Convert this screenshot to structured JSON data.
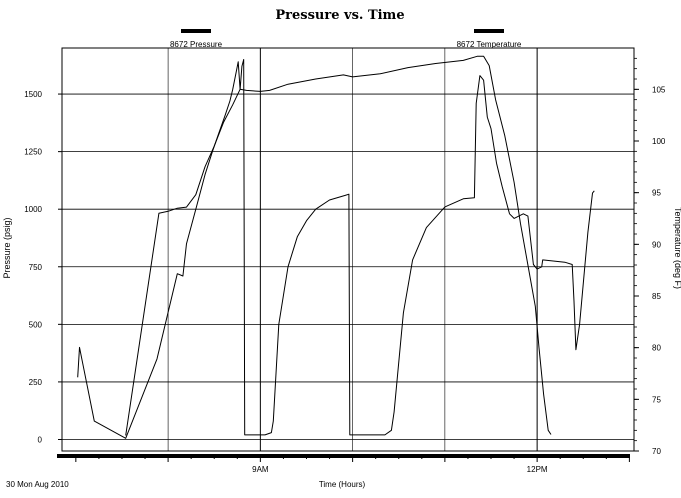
{
  "chart_data": {
    "type": "line",
    "title": "Pressure vs. Time",
    "xlabel": "Time (Hours)",
    "ylabel": "Pressure (psig)",
    "y2label": "Temperature (deg F)",
    "date_label": "30 Mon Aug 2010",
    "x_ticks": [
      {
        "x": 9.0,
        "label": "9AM"
      },
      {
        "x": 12.0,
        "label": "12PM"
      }
    ],
    "xlim": [
      6.85,
      13.05
    ],
    "ylim": [
      -50,
      1700
    ],
    "y_ticks": [
      0,
      250,
      500,
      750,
      1000,
      1250,
      1500
    ],
    "y2lim": [
      70,
      109
    ],
    "y2_ticks": [
      70,
      75,
      80,
      85,
      90,
      95,
      100,
      105
    ],
    "grid": true,
    "legend_position": "top",
    "series": [
      {
        "name": "8672 Pressure",
        "axis": "left",
        "color": "#000000",
        "points": [
          [
            7.02,
            270
          ],
          [
            7.04,
            400
          ],
          [
            7.08,
            320
          ],
          [
            7.2,
            80
          ],
          [
            7.54,
            5
          ],
          [
            7.88,
            350
          ],
          [
            8.1,
            720
          ],
          [
            8.16,
            710
          ],
          [
            8.2,
            850
          ],
          [
            8.3,
            1000
          ],
          [
            8.4,
            1150
          ],
          [
            8.48,
            1250
          ],
          [
            8.55,
            1330
          ],
          [
            8.62,
            1410
          ],
          [
            8.67,
            1470
          ],
          [
            8.7,
            1520
          ],
          [
            8.74,
            1600
          ],
          [
            8.76,
            1640
          ],
          [
            8.78,
            1520
          ],
          [
            8.8,
            1620
          ],
          [
            8.82,
            1650
          ],
          [
            8.83,
            20
          ],
          [
            9.05,
            20
          ],
          [
            9.12,
            30
          ],
          [
            9.14,
            80
          ],
          [
            9.2,
            500
          ],
          [
            9.3,
            750
          ],
          [
            9.4,
            880
          ],
          [
            9.5,
            950
          ],
          [
            9.6,
            1000
          ],
          [
            9.75,
            1040
          ],
          [
            9.92,
            1060
          ],
          [
            9.96,
            1065
          ],
          [
            9.97,
            20
          ],
          [
            10.35,
            20
          ],
          [
            10.42,
            40
          ],
          [
            10.45,
            120
          ],
          [
            10.55,
            550
          ],
          [
            10.65,
            780
          ],
          [
            10.8,
            920
          ],
          [
            11.0,
            1010
          ],
          [
            11.2,
            1045
          ],
          [
            11.32,
            1050
          ],
          [
            11.34,
            1460
          ],
          [
            11.38,
            1580
          ],
          [
            11.42,
            1560
          ],
          [
            11.46,
            1400
          ],
          [
            11.5,
            1350
          ],
          [
            11.56,
            1200
          ],
          [
            11.62,
            1100
          ],
          [
            11.7,
            980
          ],
          [
            11.75,
            960
          ],
          [
            11.85,
            980
          ],
          [
            11.9,
            970
          ],
          [
            11.96,
            760
          ],
          [
            12.0,
            740
          ],
          [
            12.05,
            750
          ],
          [
            12.06,
            780
          ],
          [
            12.3,
            770
          ],
          [
            12.38,
            760
          ],
          [
            12.4,
            600
          ],
          [
            12.42,
            390
          ],
          [
            12.46,
            500
          ],
          [
            12.55,
            900
          ],
          [
            12.6,
            1070
          ],
          [
            12.62,
            1080
          ]
        ]
      },
      {
        "name": "8672 Temperature",
        "axis": "right",
        "color": "#000000",
        "points": [
          [
            7.54,
            71.5
          ],
          [
            7.9,
            93.0
          ],
          [
            8.0,
            93.2
          ],
          [
            8.1,
            93.5
          ],
          [
            8.2,
            93.6
          ],
          [
            8.3,
            94.8
          ],
          [
            8.4,
            97.5
          ],
          [
            8.5,
            99.5
          ],
          [
            8.6,
            101.8
          ],
          [
            8.7,
            103.5
          ],
          [
            8.78,
            105.0
          ],
          [
            8.85,
            104.9
          ],
          [
            9.0,
            104.8
          ],
          [
            9.1,
            104.9
          ],
          [
            9.3,
            105.5
          ],
          [
            9.6,
            106.0
          ],
          [
            9.9,
            106.4
          ],
          [
            10.0,
            106.2
          ],
          [
            10.3,
            106.5
          ],
          [
            10.6,
            107.1
          ],
          [
            10.9,
            107.5
          ],
          [
            11.2,
            107.8
          ],
          [
            11.35,
            108.2
          ],
          [
            11.42,
            108.2
          ],
          [
            11.48,
            107.3
          ],
          [
            11.55,
            104.0
          ],
          [
            11.65,
            100.5
          ],
          [
            11.75,
            96.0
          ],
          [
            11.82,
            92.0
          ],
          [
            11.9,
            88.0
          ],
          [
            11.98,
            84.0
          ],
          [
            12.02,
            80.0
          ],
          [
            12.07,
            75.5
          ],
          [
            12.12,
            72.0
          ],
          [
            12.15,
            71.6
          ]
        ]
      }
    ]
  }
}
